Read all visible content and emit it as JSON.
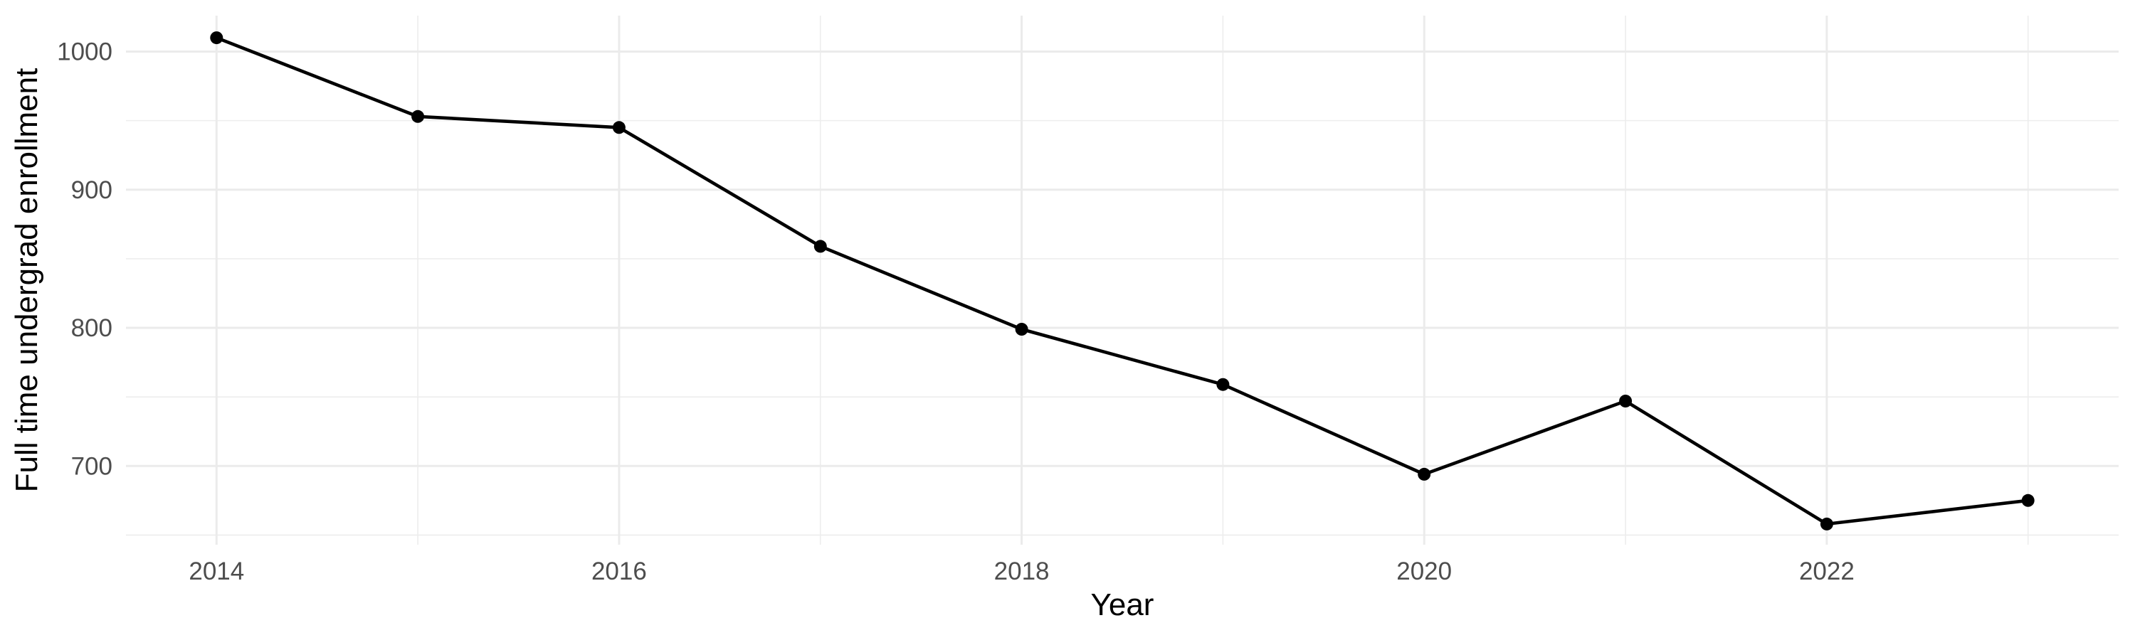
{
  "chart_data": {
    "type": "line",
    "title": "",
    "xlabel": "Year",
    "ylabel": "Full time undergrad enrollment",
    "x": [
      2014,
      2015,
      2016,
      2017,
      2018,
      2019,
      2020,
      2021,
      2022,
      2023
    ],
    "values": [
      1010,
      953,
      945,
      859,
      799,
      759,
      694,
      747,
      658,
      675
    ],
    "xlim": [
      2013.55,
      2023.45
    ],
    "ylim": [
      643,
      1026
    ],
    "xticks": [
      2014,
      2016,
      2018,
      2020,
      2022
    ],
    "yticks": [
      700,
      800,
      900,
      1000
    ],
    "x_minor_gridlines": [
      2015,
      2017,
      2019,
      2021,
      2023
    ],
    "y_minor_gridlines": [
      650,
      750,
      850,
      950
    ],
    "grid": true,
    "legend_position": "none",
    "marker": "filled-circle",
    "colors": {
      "background": "#FFFFFF",
      "gridline_major": "#EBEBEB",
      "gridline_minor": "#EDEDED",
      "line": "#000000",
      "point": "#000000",
      "tick_label": "#4D4D4D",
      "axis_title": "#000000"
    }
  },
  "axes": {
    "x_title": "Year",
    "y_title": "Full time undergrad enrollment"
  }
}
